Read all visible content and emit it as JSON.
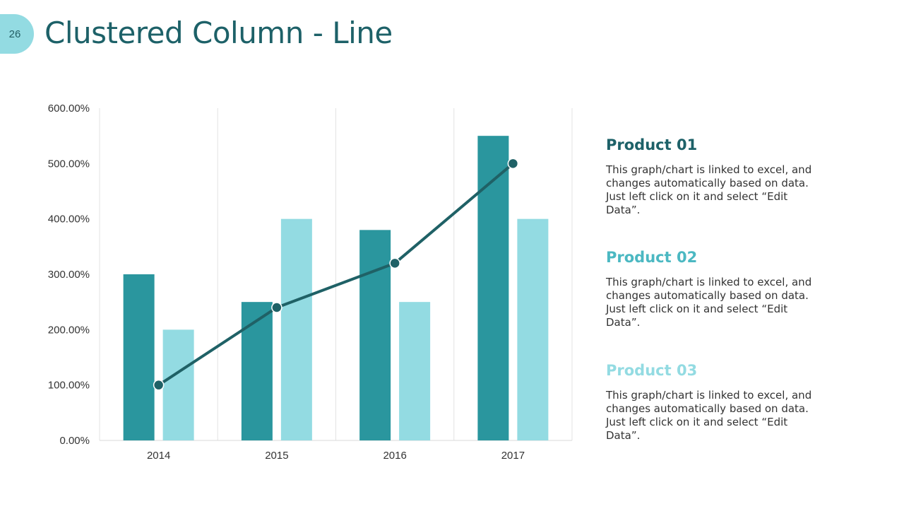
{
  "slide": {
    "page_number": "26",
    "title": "Clustered Column - Line"
  },
  "colors": {
    "product_01": "#2a969e",
    "product_02": "#93dbe2",
    "line": "#1f6166",
    "title": "#1d6168"
  },
  "chart_data": {
    "type": "bar",
    "categories": [
      "2014",
      "2015",
      "2016",
      "2017"
    ],
    "series": [
      {
        "type": "bar",
        "values": [
          300,
          250,
          380,
          550
        ],
        "color": "#2a969e"
      },
      {
        "type": "bar",
        "values": [
          200,
          400,
          250,
          400
        ],
        "color": "#93dbe2"
      },
      {
        "type": "line",
        "values": [
          100,
          240,
          320,
          500
        ],
        "color": "#1f6166"
      }
    ],
    "ylim": [
      0,
      600
    ],
    "yticks": [
      0,
      100,
      200,
      300,
      400,
      500,
      600
    ],
    "ytick_labels": [
      "0.00%",
      "100.00%",
      "200.00%",
      "300.00%",
      "400.00%",
      "500.00%",
      "600.00%"
    ],
    "grid": "vertical category separators",
    "xlabel": "",
    "ylabel": ""
  },
  "legend": [
    {
      "title": "Product 01",
      "color": "#1d6168",
      "description": "This graph/chart is linked to excel, and changes automatically based on data. Just left click on it and select “Edit Data”."
    },
    {
      "title": "Product 02",
      "color": "#4bb8c2",
      "description": "This graph/chart is linked to excel, and changes automatically based on data. Just left click on it and select “Edit Data”."
    },
    {
      "title": "Product 03",
      "color": "#93dbe2",
      "description": "This graph/chart is linked to excel, and changes automatically based on data. Just left click on it and select “Edit Data”."
    }
  ]
}
